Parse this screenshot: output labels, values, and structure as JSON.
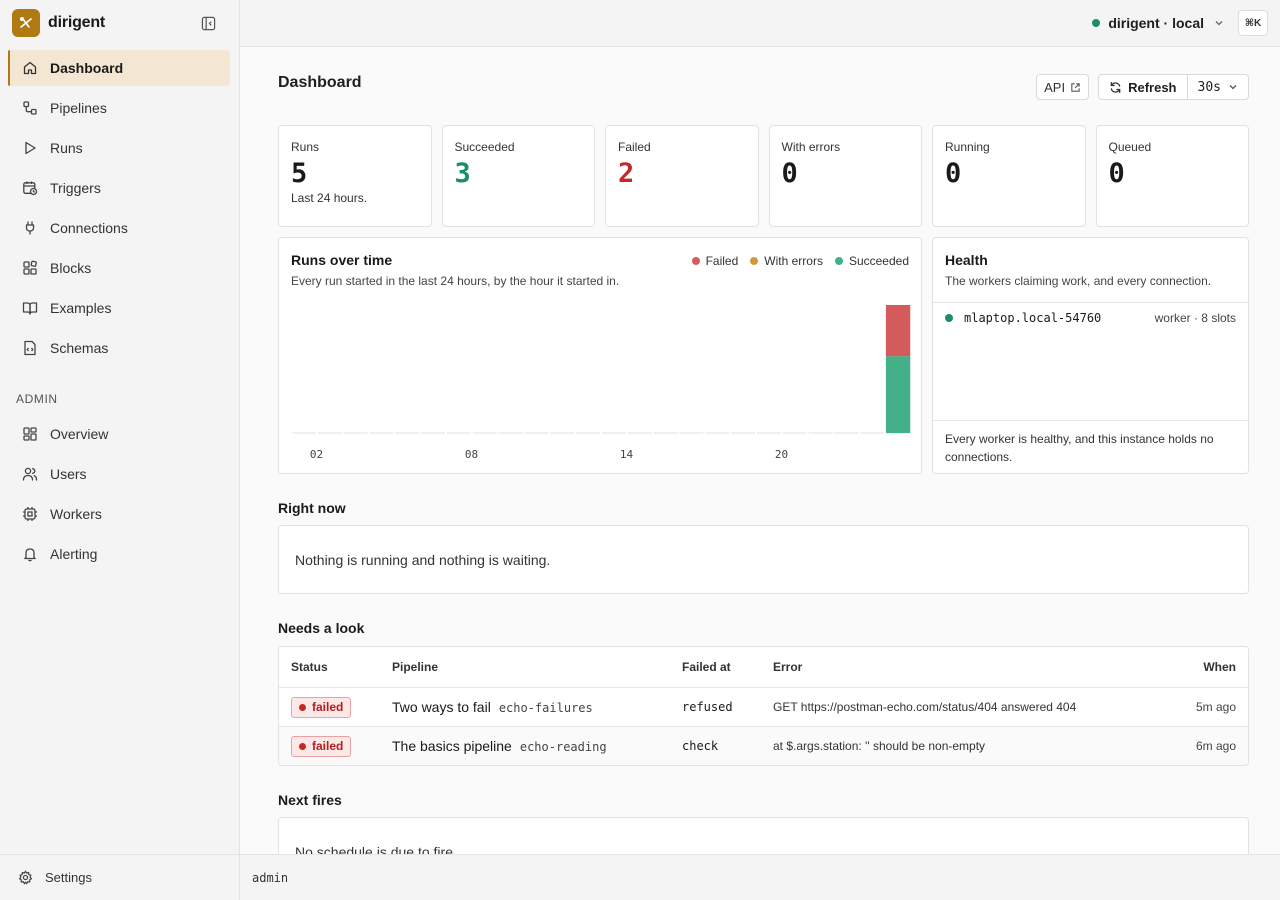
{
  "brand": {
    "name": "dirigent"
  },
  "nav": {
    "items": [
      {
        "label": "Dashboard",
        "icon": "home-icon"
      },
      {
        "label": "Pipelines",
        "icon": "pipelines-icon"
      },
      {
        "label": "Runs",
        "icon": "play-icon"
      },
      {
        "label": "Triggers",
        "icon": "calendar-clock-icon"
      },
      {
        "label": "Connections",
        "icon": "plug-icon"
      },
      {
        "label": "Blocks",
        "icon": "blocks-icon"
      },
      {
        "label": "Examples",
        "icon": "book-icon"
      },
      {
        "label": "Schemas",
        "icon": "file-code-icon"
      }
    ],
    "admin_label": "ADMIN",
    "admin_items": [
      {
        "label": "Overview",
        "icon": "grid-icon"
      },
      {
        "label": "Users",
        "icon": "users-icon"
      },
      {
        "label": "Workers",
        "icon": "cpu-icon"
      },
      {
        "label": "Alerting",
        "icon": "bell-icon"
      }
    ],
    "settings_label": "Settings"
  },
  "topbar": {
    "instance": "dirigent · local",
    "shortcut": "⌘K",
    "status_color": "#1a8f63"
  },
  "page": {
    "title": "Dashboard",
    "api_label": "API",
    "refresh_label": "Refresh",
    "interval": "30s"
  },
  "stats": [
    {
      "label": "Runs",
      "value": "5",
      "sub": "Last 24 hours."
    },
    {
      "label": "Succeeded",
      "value": "3"
    },
    {
      "label": "Failed",
      "value": "2"
    },
    {
      "label": "With errors",
      "value": "0"
    },
    {
      "label": "Running",
      "value": "0"
    },
    {
      "label": "Queued",
      "value": "0"
    }
  ],
  "chart": {
    "title": "Runs over time",
    "subtitle": "Every run started in the last 24 hours, by the hour it started in.",
    "legend": [
      "Failed",
      "With errors",
      "Succeeded"
    ]
  },
  "chart_data": {
    "type": "bar",
    "stacked": true,
    "categories": [
      "01",
      "02",
      "03",
      "04",
      "05",
      "06",
      "07",
      "08",
      "09",
      "10",
      "11",
      "12",
      "13",
      "14",
      "15",
      "16",
      "17",
      "18",
      "19",
      "20",
      "21",
      "22",
      "23",
      "24"
    ],
    "tick_labels": [
      "02",
      "08",
      "14",
      "20"
    ],
    "series": [
      {
        "name": "Succeeded",
        "color": "#43b08a",
        "values": [
          0,
          0,
          0,
          0,
          0,
          0,
          0,
          0,
          0,
          0,
          0,
          0,
          0,
          0,
          0,
          0,
          0,
          0,
          0,
          0,
          0,
          0,
          0,
          3
        ]
      },
      {
        "name": "With errors",
        "color": "#d09a3c",
        "values": [
          0,
          0,
          0,
          0,
          0,
          0,
          0,
          0,
          0,
          0,
          0,
          0,
          0,
          0,
          0,
          0,
          0,
          0,
          0,
          0,
          0,
          0,
          0,
          0
        ]
      },
      {
        "name": "Failed",
        "color": "#d45b5b",
        "values": [
          0,
          0,
          0,
          0,
          0,
          0,
          0,
          0,
          0,
          0,
          0,
          0,
          0,
          0,
          0,
          0,
          0,
          0,
          0,
          0,
          0,
          0,
          0,
          2
        ]
      }
    ],
    "ylim": [
      0,
      5
    ]
  },
  "health": {
    "title": "Health",
    "subtitle": "The workers claiming work, and every connection.",
    "workers": [
      {
        "name": "mlaptop.local-54760",
        "meta": "worker · 8 slots"
      }
    ],
    "footer": "Every worker is healthy, and this instance holds no connections."
  },
  "right_now": {
    "title": "Right now",
    "message": "Nothing is running and nothing is waiting."
  },
  "needs_look": {
    "title": "Needs a look",
    "columns": {
      "status": "Status",
      "pipeline": "Pipeline",
      "failed_at": "Failed at",
      "error": "Error",
      "when": "When"
    },
    "rows": [
      {
        "status": "failed",
        "pipeline": "Two ways to fail",
        "slug": "echo-failures",
        "failed_at": "refused",
        "error": "GET https://postman-echo.com/status/404 answered 404",
        "when": "5m ago"
      },
      {
        "status": "failed",
        "pipeline": "The basics pipeline",
        "slug": "echo-reading",
        "failed_at": "check",
        "error": "at $.args.station: '' should be non-empty",
        "when": "6m ago"
      }
    ]
  },
  "next_fires": {
    "title": "Next fires",
    "message": "No schedule is due to fire."
  },
  "statusbar": {
    "user": "admin"
  }
}
